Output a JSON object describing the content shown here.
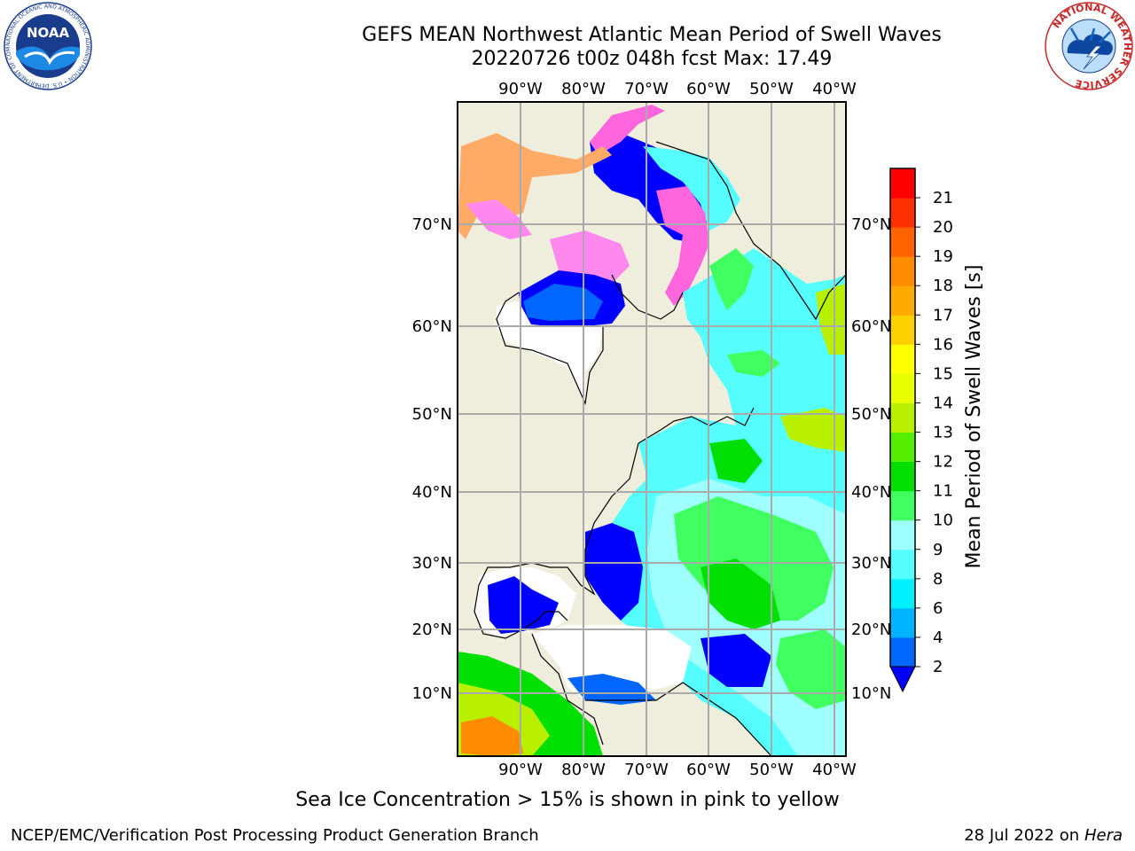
{
  "title": {
    "line1": "GEFS MEAN Northwest Atlantic Mean Period of Swell Waves",
    "line2": "20220726 t00z 048h fcst   Max: 17.49"
  },
  "map": {
    "lon_labels": [
      "90°W",
      "80°W",
      "70°W",
      "60°W",
      "50°W",
      "40°W"
    ],
    "lat_labels": [
      "70°N",
      "60°N",
      "50°N",
      "40°N",
      "30°N",
      "20°N",
      "10°N"
    ]
  },
  "colorbar": {
    "label": "Mean Period of Swell Waves [s]",
    "ticks": [
      "2",
      "4",
      "6",
      "8",
      "9",
      "10",
      "11",
      "12",
      "13",
      "14",
      "15",
      "16",
      "17",
      "18",
      "19",
      "20",
      "21"
    ],
    "colors": [
      "#0066ff",
      "#00b4ff",
      "#00f0ff",
      "#55ffff",
      "#9fffff",
      "#40ff60",
      "#00e000",
      "#55ee00",
      "#b8f000",
      "#e8ff00",
      "#ffff00",
      "#ffd000",
      "#ffaa00",
      "#ff8c00",
      "#ff6400",
      "#ff3000",
      "#ff0000"
    ],
    "extend_color": "#0000ff"
  },
  "note": "Sea Ice Concentration > 15% is shown in pink to yellow",
  "footer": {
    "left": "NCEP/EMC/Verification Post Processing Product Generation Branch",
    "right_prefix": "28 Jul 2022 on ",
    "right_host": "Hera"
  },
  "logos": {
    "noaa_text": "NOAA",
    "noaa_ring": "NATIONAL OCEANIC AND ATMOSPHERIC ADMINISTRATION • U.S. DEPARTMENT OF COMMERCE •",
    "nws_ring": "NATIONAL WEATHER SERVICE"
  }
}
